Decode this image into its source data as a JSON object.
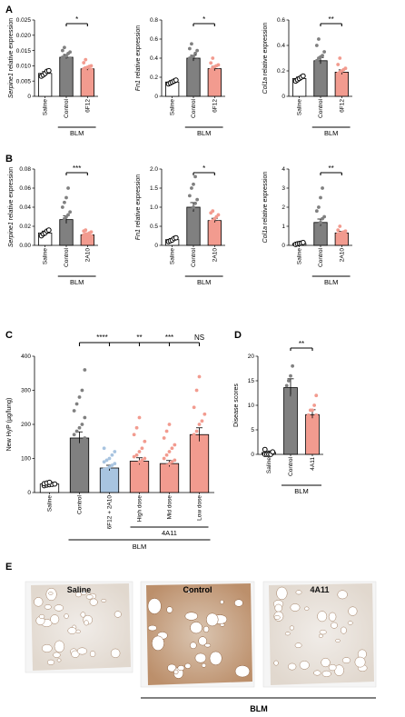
{
  "panels": [
    {
      "letter": "A",
      "ylabel_italic": "Serpine1",
      "ylabel_rest": " relative expression",
      "ylim": [
        0,
        0.025
      ],
      "ticks": [
        "0",
        "0.005",
        "0.010",
        "0.015",
        "0.020",
        "0.025"
      ],
      "tick_values": [
        0,
        0.005,
        0.01,
        0.015,
        0.02,
        0.025
      ],
      "categories": [
        "Saline",
        "Control",
        "6F12"
      ],
      "values": [
        0.0075,
        0.0128,
        0.009
      ],
      "errors": [
        0.0006,
        0.0009,
        0.0007
      ],
      "points": [
        [
          0.007,
          0.0082,
          0.0066,
          0.0084,
          0.0075
        ],
        [
          0.0125,
          0.014,
          0.011,
          0.016,
          0.0132,
          0.012,
          0.0145,
          0.0105,
          0.013,
          0.0118,
          0.015,
          0.0128
        ],
        [
          0.008,
          0.0095,
          0.01,
          0.0085,
          0.012,
          0.007,
          0.009,
          0.011,
          0.0088,
          0.0093,
          0.0078,
          0.0098
        ]
      ],
      "comparison": {
        "from": 1,
        "to": 2,
        "label": "*"
      },
      "group_label": "BLM",
      "group_span": [
        1,
        2
      ]
    },
    {
      "letter": "",
      "ylabel_italic": "Fn1",
      "ylabel_rest": " relative expression",
      "ylim": [
        0,
        0.8
      ],
      "ticks": [
        "0",
        "0.2",
        "0.4",
        "0.6",
        "0.8"
      ],
      "tick_values": [
        0,
        0.2,
        0.4,
        0.6,
        0.8
      ],
      "categories": [
        "Saline",
        "Control",
        "6F12"
      ],
      "values": [
        0.15,
        0.4,
        0.29
      ],
      "errors": [
        0.015,
        0.03,
        0.025
      ],
      "points": [
        [
          0.14,
          0.16,
          0.13,
          0.17,
          0.15
        ],
        [
          0.35,
          0.42,
          0.5,
          0.38,
          0.45,
          0.3,
          0.55,
          0.4,
          0.36,
          0.48,
          0.33,
          0.41
        ],
        [
          0.25,
          0.3,
          0.35,
          0.2,
          0.28,
          0.4,
          0.22,
          0.32,
          0.27,
          0.31,
          0.26,
          0.33
        ]
      ],
      "comparison": {
        "from": 1,
        "to": 2,
        "label": "*"
      },
      "group_label": "BLM",
      "group_span": [
        1,
        2
      ]
    },
    {
      "letter": "",
      "ylabel_italic": "Col1a",
      "ylabel_rest": " relative expression",
      "ylim": [
        0,
        0.6
      ],
      "ticks": [
        "0",
        "0.2",
        "0.4",
        "0.6"
      ],
      "tick_values": [
        0,
        0.2,
        0.4,
        0.6
      ],
      "categories": [
        "Saline",
        "Control",
        "6F12"
      ],
      "values": [
        0.14,
        0.28,
        0.19
      ],
      "errors": [
        0.012,
        0.025,
        0.018
      ],
      "points": [
        [
          0.13,
          0.15,
          0.12,
          0.16,
          0.14
        ],
        [
          0.25,
          0.3,
          0.4,
          0.22,
          0.35,
          0.2,
          0.45,
          0.28,
          0.32,
          0.26,
          0.24,
          0.31
        ],
        [
          0.15,
          0.2,
          0.25,
          0.12,
          0.18,
          0.3,
          0.17,
          0.22,
          0.19,
          0.14,
          0.21,
          0.16
        ]
      ],
      "comparison": {
        "from": 1,
        "to": 2,
        "label": "**"
      },
      "group_label": "BLM",
      "group_span": [
        1,
        2
      ]
    },
    {
      "letter": "B",
      "ylabel_italic": "Serpine1",
      "ylabel_rest": " relative expression",
      "ylim": [
        0,
        0.08
      ],
      "ticks": [
        "0.00",
        "0.02",
        "0.04",
        "0.06",
        "0.08"
      ],
      "tick_values": [
        0,
        0.02,
        0.04,
        0.06,
        0.08
      ],
      "categories": [
        "Saline",
        "Control",
        "2A10"
      ],
      "values": [
        0.013,
        0.027,
        0.011
      ],
      "errors": [
        0.002,
        0.004,
        0.0015
      ],
      "points": [
        [
          0.01,
          0.015,
          0.012,
          0.016,
          0.013
        ],
        [
          0.02,
          0.03,
          0.045,
          0.015,
          0.05,
          0.025,
          0.035,
          0.018,
          0.028,
          0.04,
          0.022,
          0.06,
          0.012,
          0.032
        ],
        [
          0.008,
          0.012,
          0.01,
          0.015,
          0.009,
          0.011,
          0.014,
          0.007,
          0.013,
          0.01,
          0.012,
          0.016
        ]
      ],
      "comparison": {
        "from": 1,
        "to": 2,
        "label": "***"
      },
      "group_label": "BLM",
      "group_span": [
        1,
        2
      ]
    },
    {
      "letter": "",
      "ylabel_italic": "Fn1",
      "ylabel_rest": " relative expression",
      "ylim": [
        0,
        2.0
      ],
      "ticks": [
        "0",
        "0.5",
        "1.0",
        "1.5",
        "2.0"
      ],
      "tick_values": [
        0,
        0.5,
        1.0,
        1.5,
        2.0
      ],
      "categories": [
        "Saline",
        "Control",
        "2A10"
      ],
      "values": [
        0.15,
        1.0,
        0.65
      ],
      "errors": [
        0.03,
        0.12,
        0.06
      ],
      "points": [
        [
          0.12,
          0.18,
          0.14,
          0.2,
          0.1
        ],
        [
          0.5,
          0.8,
          1.2,
          1.5,
          0.9,
          1.8,
          0.6,
          1.1,
          1.3,
          0.7,
          1.0,
          1.6,
          0.4,
          0.95
        ],
        [
          0.5,
          0.7,
          0.6,
          0.8,
          0.55,
          0.9,
          0.65,
          0.45,
          0.75,
          0.62,
          0.58,
          0.85
        ]
      ],
      "comparison": {
        "from": 1,
        "to": 2,
        "label": "*"
      },
      "group_label": "BLM",
      "group_span": [
        1,
        2
      ]
    },
    {
      "letter": "",
      "ylabel_italic": "Col1a",
      "ylabel_rest": " relative expression",
      "ylim": [
        0,
        4
      ],
      "ticks": [
        "0",
        "1",
        "2",
        "3",
        "4"
      ],
      "tick_values": [
        0,
        1,
        2,
        3,
        4
      ],
      "categories": [
        "Saline",
        "Control",
        "2A10"
      ],
      "values": [
        0.1,
        1.2,
        0.65
      ],
      "errors": [
        0.03,
        0.18,
        0.08
      ],
      "points": [
        [
          0.08,
          0.12,
          0.1,
          0.05,
          0.15
        ],
        [
          0.5,
          1.0,
          1.5,
          2.0,
          2.5,
          0.8,
          1.2,
          0.6,
          1.8,
          3.0,
          0.9,
          1.4,
          0.4,
          1.1
        ],
        [
          0.4,
          0.6,
          0.8,
          0.5,
          0.7,
          1.0,
          0.55,
          0.65,
          0.45,
          0.75,
          0.62,
          0.58
        ]
      ],
      "comparison": {
        "from": 1,
        "to": 2,
        "label": "**"
      },
      "group_label": "BLM",
      "group_span": [
        1,
        2
      ]
    }
  ],
  "panelC": {
    "letter": "C",
    "ylabel": "New HyP (µg/lung)",
    "ylim": [
      0,
      400
    ],
    "ticks": [
      "0",
      "100",
      "200",
      "300",
      "400"
    ],
    "tick_values": [
      0,
      100,
      200,
      300,
      400
    ],
    "categories": [
      "Saline",
      "Control",
      "6F12 + 2A10",
      "High dose",
      "Mid dose",
      "Low dose"
    ],
    "values": [
      25,
      160,
      72,
      92,
      85,
      170
    ],
    "errors": [
      3,
      18,
      8,
      10,
      9,
      20
    ],
    "colors": [
      "#ffffff",
      "#808080",
      "#a8c4e0",
      "#f29b8f",
      "#f29b8f",
      "#f29b8f"
    ],
    "points": [
      [
        22,
        25,
        28,
        20,
        30,
        24,
        26,
        23
      ],
      [
        60,
        100,
        140,
        180,
        220,
        260,
        300,
        360,
        120,
        160,
        200,
        90,
        150,
        240,
        130,
        170,
        110,
        280,
        80,
        190
      ],
      [
        40,
        60,
        80,
        100,
        120,
        50,
        70,
        90,
        110,
        65,
        75,
        85,
        55,
        95,
        68,
        130
      ],
      [
        50,
        70,
        90,
        110,
        130,
        150,
        170,
        190,
        220,
        60,
        80,
        100,
        120,
        85,
        95,
        75,
        105,
        65
      ],
      [
        40,
        60,
        80,
        100,
        120,
        140,
        160,
        180,
        200,
        70,
        90,
        50,
        110,
        85,
        95,
        75,
        65,
        130
      ],
      [
        60,
        90,
        120,
        150,
        180,
        210,
        250,
        300,
        340,
        100,
        130,
        160,
        200,
        230,
        80,
        110,
        140,
        170
      ]
    ],
    "sig_labels": [
      "****",
      "**",
      "***",
      "NS"
    ],
    "group_label": "BLM",
    "subgroup_label": "4A11"
  },
  "panelD": {
    "letter": "D",
    "ylabel": "Disease scores",
    "ylim": [
      0,
      20
    ],
    "ticks": [
      "0",
      "5",
      "10",
      "15",
      "20"
    ],
    "tick_values": [
      0,
      5,
      10,
      15,
      20
    ],
    "categories": [
      "Saline",
      "Control",
      "4A11"
    ],
    "values": [
      0.4,
      13.6,
      8.1
    ],
    "errors": [
      0.3,
      1.8,
      1.0
    ],
    "colors": [
      "#ffffff",
      "#808080",
      "#f29b8f"
    ],
    "points": [
      [
        0,
        0,
        1,
        0,
        0.5,
        0
      ],
      [
        8,
        10,
        12,
        14,
        15,
        16,
        18,
        13,
        9
      ],
      [
        6,
        7,
        8,
        9,
        10,
        8,
        7,
        9,
        6,
        12
      ]
    ],
    "comparison": {
      "label": "**"
    },
    "group_label": "BLM"
  },
  "panelE": {
    "letter": "E",
    "titles": [
      "Saline",
      "Control",
      "4A11"
    ],
    "group_label": "BLM"
  },
  "colors": {
    "control": "#808080",
    "treated": "#f29b8f",
    "combo": "#a8c4e0",
    "saline": "#ffffff"
  }
}
